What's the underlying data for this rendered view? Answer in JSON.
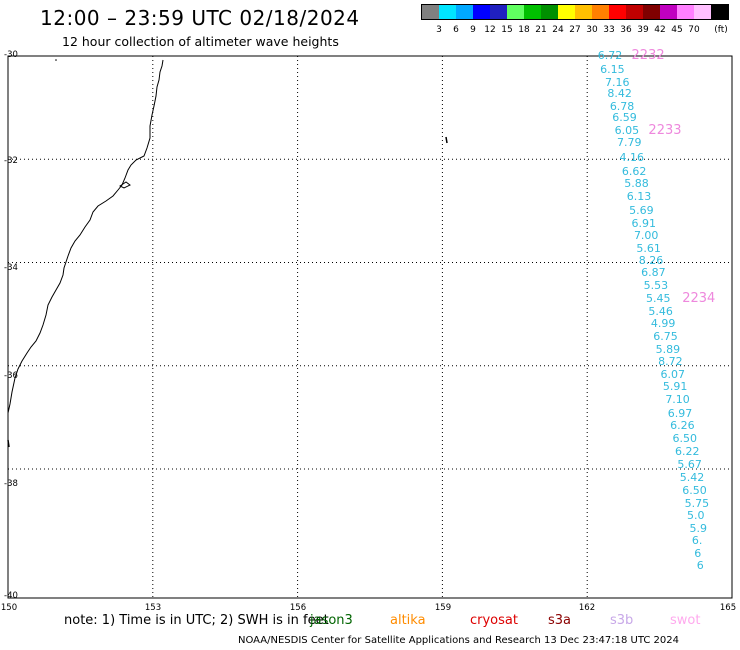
{
  "header": {
    "title": "12:00 – 23:59 UTC 02/18/2024",
    "subtitle": "12 hour collection of altimeter wave heights"
  },
  "colorbar": {
    "colors": [
      "#808080",
      "#00e5ff",
      "#00a8ff",
      "#0000ff",
      "#2020c0",
      "#60ff60",
      "#00c000",
      "#009000",
      "#ffff00",
      "#ffc000",
      "#ff8000",
      "#ff0000",
      "#c00000",
      "#800000",
      "#c000c0",
      "#ff80ff",
      "#ffc0ff",
      "#000000"
    ],
    "labels": [
      "3",
      "6",
      "9",
      "12",
      "15",
      "18",
      "21",
      "24",
      "27",
      "30",
      "33",
      "36",
      "39",
      "42",
      "45",
      "70",
      "(ft)"
    ]
  },
  "axes": {
    "lat_labels": [
      "-30",
      "-32",
      "-34",
      "-36",
      "-38",
      "-40"
    ],
    "lon_labels": [
      "150",
      "153",
      "156",
      "159",
      "162",
      "165"
    ]
  },
  "observations": [
    {
      "v": "6.72",
      "lat": -30.0,
      "lon": 162.55
    },
    {
      "v": "6.15",
      "lat": -30.27,
      "lon": 162.6
    },
    {
      "v": "7.16",
      "lat": -30.52,
      "lon": 162.7
    },
    {
      "v": "8.42",
      "lat": -30.73,
      "lon": 162.75
    },
    {
      "v": "6.78",
      "lat": -30.98,
      "lon": 162.8
    },
    {
      "v": "6.59",
      "lat": -31.2,
      "lon": 162.85
    },
    {
      "v": "6.05",
      "lat": -31.45,
      "lon": 162.9
    },
    {
      "v": "7.79",
      "lat": -31.68,
      "lon": 162.95
    },
    {
      "v": "4.16",
      "lat": -31.98,
      "lon": 163.0
    },
    {
      "v": "6.62",
      "lat": -32.24,
      "lon": 163.05
    },
    {
      "v": "5.88",
      "lat": -32.48,
      "lon": 163.1
    },
    {
      "v": "6.13",
      "lat": -32.74,
      "lon": 163.15
    },
    {
      "v": "5.69",
      "lat": -33.0,
      "lon": 163.2
    },
    {
      "v": "6.91",
      "lat": -33.25,
      "lon": 163.25
    },
    {
      "v": "7.00",
      "lat": -33.48,
      "lon": 163.3
    },
    {
      "v": "5.61",
      "lat": -33.74,
      "lon": 163.35
    },
    {
      "v": "8.26",
      "lat": -33.97,
      "lon": 163.4
    },
    {
      "v": "6.87",
      "lat": -34.2,
      "lon": 163.45
    },
    {
      "v": "5.53",
      "lat": -34.46,
      "lon": 163.5
    },
    {
      "v": "5.45",
      "lat": -34.7,
      "lon": 163.55
    },
    {
      "v": "5.46",
      "lat": -34.95,
      "lon": 163.6
    },
    {
      "v": "4.99",
      "lat": -35.2,
      "lon": 163.65
    },
    {
      "v": "6.75",
      "lat": -35.45,
      "lon": 163.7
    },
    {
      "v": "5.89",
      "lat": -35.7,
      "lon": 163.75
    },
    {
      "v": "8.72",
      "lat": -35.93,
      "lon": 163.8
    },
    {
      "v": "6.07",
      "lat": -36.18,
      "lon": 163.85
    },
    {
      "v": "5.91",
      "lat": -36.42,
      "lon": 163.9
    },
    {
      "v": "7.10",
      "lat": -36.67,
      "lon": 163.95
    },
    {
      "v": "6.97",
      "lat": -36.93,
      "lon": 164.0
    },
    {
      "v": "6.26",
      "lat": -37.17,
      "lon": 164.05
    },
    {
      "v": "6.50",
      "lat": -37.42,
      "lon": 164.1
    },
    {
      "v": "6.22",
      "lat": -37.67,
      "lon": 164.15
    },
    {
      "v": "5.67",
      "lat": -37.93,
      "lon": 164.2
    },
    {
      "v": "5.42",
      "lat": -38.18,
      "lon": 164.25
    },
    {
      "v": "6.50",
      "lat": -38.42,
      "lon": 164.3
    },
    {
      "v": "5.75",
      "lat": -38.67,
      "lon": 164.35
    },
    {
      "v": "5.0",
      "lat": -38.92,
      "lon": 164.4
    },
    {
      "v": "5.9",
      "lat": -39.17,
      "lon": 164.45
    },
    {
      "v": "6.",
      "lat": -39.4,
      "lon": 164.5
    },
    {
      "v": "6",
      "lat": -39.65,
      "lon": 164.55
    },
    {
      "v": "6",
      "lat": -39.88,
      "lon": 164.6
    }
  ],
  "pass_labels": [
    {
      "label": "2232",
      "lat": -30.0,
      "lon": 163.25
    },
    {
      "label": "2233",
      "lat": -31.45,
      "lon": 163.6
    },
    {
      "label": "2234",
      "lat": -34.7,
      "lon": 164.3
    }
  ],
  "footer": {
    "note": "note: 1) Time is in UTC; 2) SWH is in feet",
    "credit": "NOAA/NESDIS Center for Satellite Applications and Research    13 Dec 23:47:18 UTC 2024",
    "satellites": [
      {
        "name": "jason3",
        "color": "#006400"
      },
      {
        "name": "altika",
        "color": "#ff8c00"
      },
      {
        "name": "cryosat",
        "color": "#dd0000"
      },
      {
        "name": "s3a",
        "color": "#8b0000"
      },
      {
        "name": "s3b",
        "color": "#c8a8e8"
      },
      {
        "name": "swot",
        "color": "#ffaaee"
      }
    ]
  }
}
